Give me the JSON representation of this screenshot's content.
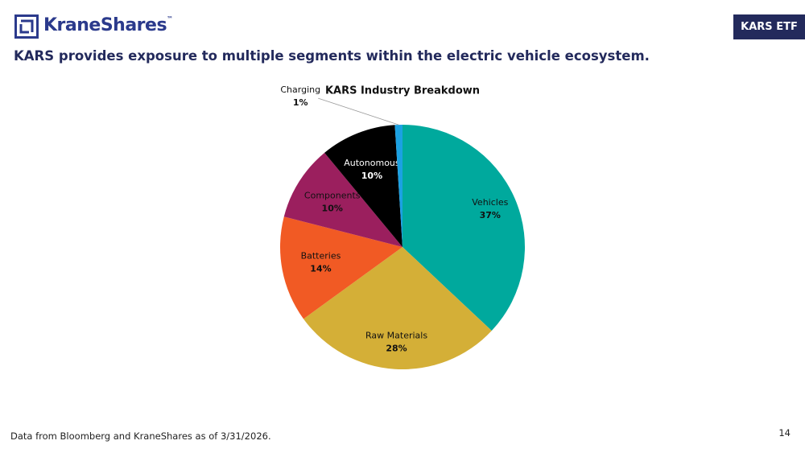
{
  "logo": {
    "name": "KraneShares",
    "mark": "™"
  },
  "header": {
    "badge": "KARS ETF",
    "title": "KARS provides exposure to multiple segments within the electric vehicle ecosystem."
  },
  "footer": {
    "source": "Data from Bloomberg and KraneShares as of 3/31/2026.",
    "page": "14"
  },
  "chart_data": {
    "type": "pie",
    "title": "KARS Industry Breakdown",
    "categories": [
      "Vehicles",
      "Raw Materials",
      "Batteries",
      "Components",
      "Autonomous",
      "Charging"
    ],
    "values": [
      37,
      28,
      14,
      10,
      10,
      1
    ],
    "value_labels": [
      "37%",
      "28%",
      "14%",
      "10%",
      "10%",
      "1%"
    ],
    "colors": [
      "#00a99d",
      "#d4af37",
      "#f15a24",
      "#9b1f5e",
      "#000000",
      "#1ba1e2"
    ]
  }
}
